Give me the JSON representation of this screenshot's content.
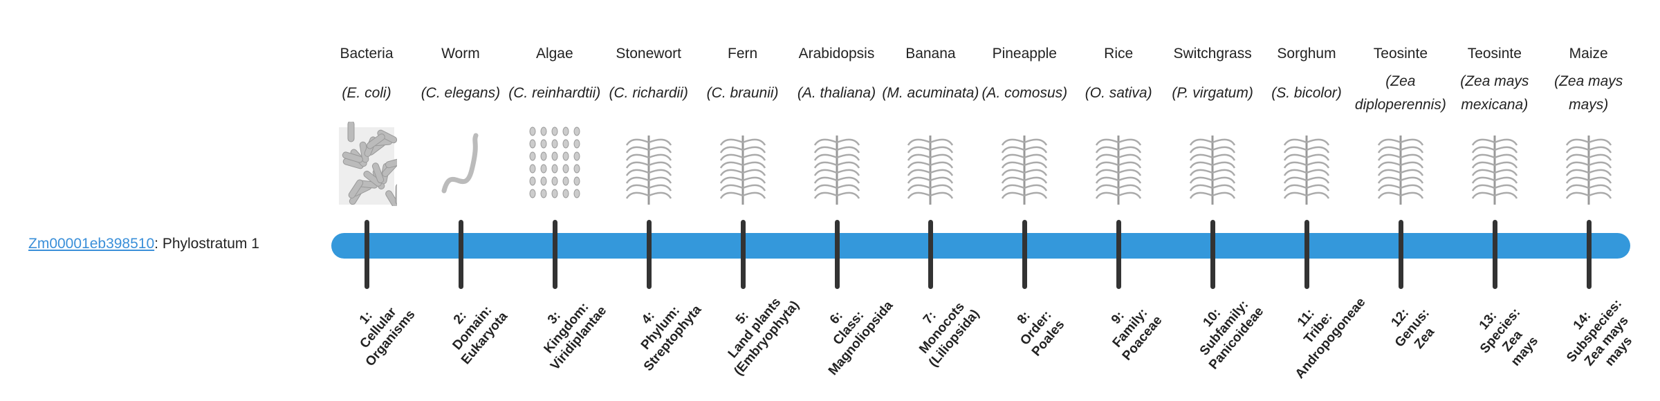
{
  "gene": {
    "id": "Zm00001eb398510",
    "suffix": ": Phylostratum 1"
  },
  "colors": {
    "bar": "#3498db",
    "tick": "#333333",
    "link": "#3a8fd9"
  },
  "strata": [
    {
      "common": "Bacteria",
      "scientific": "(E. coli)",
      "icon": "bacteria-icon",
      "rank": [
        "1:",
        "Cellular",
        "Organisms"
      ]
    },
    {
      "common": "Worm",
      "scientific": "(C. elegans)",
      "icon": "worm-icon",
      "rank": [
        "2:",
        "Domain:",
        "Eukaryota"
      ]
    },
    {
      "common": "Algae",
      "scientific": "(C. reinhardtii)",
      "icon": "algae-icon",
      "rank": [
        "3:",
        "Kingdom:",
        "Viridiplantae"
      ]
    },
    {
      "common": "Stonewort",
      "scientific": "(C. richardii)",
      "icon": "stonewort-icon",
      "rank": [
        "4:",
        "Phylum:",
        "Streptophyta"
      ]
    },
    {
      "common": "Fern",
      "scientific": "(C. braunii)",
      "icon": "fern-icon",
      "rank": [
        "5:",
        "Land plants",
        "(Embryophyta)"
      ]
    },
    {
      "common": "Arabidopsis",
      "scientific": "(A. thaliana)",
      "icon": "arabidopsis-icon",
      "rank": [
        "6:",
        "Class:",
        "Magnoliopsida"
      ]
    },
    {
      "common": "Banana",
      "scientific": "(M. acuminata)",
      "icon": "banana-icon",
      "rank": [
        "7:",
        "Monocots",
        "(Liliopsida)"
      ]
    },
    {
      "common": "Pineapple",
      "scientific": "(A. comosus)",
      "icon": "pineapple-icon",
      "rank": [
        "8:",
        "Order:",
        "Poales"
      ]
    },
    {
      "common": "Rice",
      "scientific": "(O. sativa)",
      "icon": "rice-icon",
      "rank": [
        "9:",
        "Family:",
        "Poaceae"
      ]
    },
    {
      "common": "Switchgrass",
      "scientific": "(P. virgatum)",
      "icon": "switchgrass-icon",
      "rank": [
        "10:",
        "Subfamily:",
        "Panicoideae"
      ]
    },
    {
      "common": "Sorghum",
      "scientific": "(S. bicolor)",
      "icon": "sorghum-icon",
      "rank": [
        "11:",
        "Tribe:",
        "Andropogoneae"
      ]
    },
    {
      "common": "Teosinte",
      "scientific": "(Zea diploperennis)",
      "icon": "teosinte-icon",
      "rank": [
        "12:",
        "Genus:",
        "Zea"
      ]
    },
    {
      "common": "Teosinte",
      "scientific": "(Zea mays mexicana)",
      "icon": "teosinte-icon",
      "rank": [
        "13:",
        "Species:",
        "Zea",
        "mays"
      ]
    },
    {
      "common": "Maize",
      "scientific": "(Zea mays mays)",
      "icon": "maize-icon",
      "rank": [
        "14:",
        "Subspecies:",
        "Zea mays",
        "mays"
      ]
    }
  ]
}
